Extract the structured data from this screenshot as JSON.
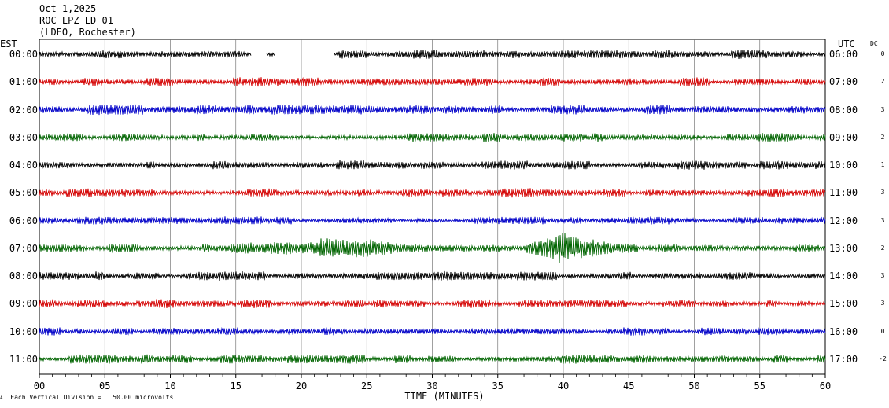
{
  "header": {
    "date": "Oct 1,2025",
    "station": "ROC LPZ LD 01",
    "network": "(LDEO, Rochester)"
  },
  "corner_labels": {
    "left": "EST",
    "right": "UTC",
    "dc": "DC"
  },
  "footer": {
    "mark": "A",
    "vertical_division": "Each Vertical Division =   50.00 microvolts"
  },
  "chart_data": {
    "type": "line",
    "title": "ROC LPZ LD 01",
    "xlabel": "TIME (MINUTES)",
    "xlim": [
      0,
      60
    ],
    "x_ticks": [
      "00",
      "05",
      "10",
      "15",
      "20",
      "25",
      "30",
      "35",
      "40",
      "45",
      "50",
      "55",
      "60"
    ],
    "grid": "vertical lines every 5 minutes",
    "colors": [
      "#000000",
      "#d40000",
      "#0000c8",
      "#006400"
    ],
    "series": [
      {
        "left_label": "00:00",
        "right_label": "06:00",
        "dc": "0",
        "color": "#000000",
        "amplitude": 3.5,
        "gaps": [
          [
            16.2,
            17.3
          ],
          [
            18.0,
            22.5
          ]
        ]
      },
      {
        "left_label": "01:00",
        "right_label": "07:00",
        "dc": "2",
        "color": "#d40000",
        "amplitude": 3.5
      },
      {
        "left_label": "02:00",
        "right_label": "08:00",
        "dc": "3",
        "color": "#0000c8",
        "amplitude": 4.0
      },
      {
        "left_label": "03:00",
        "right_label": "09:00",
        "dc": "2",
        "color": "#006400",
        "amplitude": 3.5
      },
      {
        "left_label": "04:00",
        "right_label": "10:00",
        "dc": "1",
        "color": "#000000",
        "amplitude": 3.5
      },
      {
        "left_label": "05:00",
        "right_label": "11:00",
        "dc": "3",
        "color": "#d40000",
        "amplitude": 3.5
      },
      {
        "left_label": "06:00",
        "right_label": "12:00",
        "dc": "3",
        "color": "#0000c8",
        "amplitude": 3.0
      },
      {
        "left_label": "07:00",
        "right_label": "13:00",
        "dc": "2",
        "color": "#006400",
        "amplitude": 3.5,
        "events": [
          {
            "start": 14,
            "end": 29,
            "peak": 25,
            "boost": 10
          },
          {
            "start": 37,
            "end": 44,
            "peak": 39.8,
            "boost": 16
          }
        ]
      },
      {
        "left_label": "08:00",
        "right_label": "14:00",
        "dc": "3",
        "color": "#000000",
        "amplitude": 3.5
      },
      {
        "left_label": "09:00",
        "right_label": "15:00",
        "dc": "3",
        "color": "#d40000",
        "amplitude": 3.5
      },
      {
        "left_label": "10:00",
        "right_label": "16:00",
        "dc": "0",
        "color": "#0000c8",
        "amplitude": 3.0
      },
      {
        "left_label": "11:00",
        "right_label": "17:00",
        "dc": "-2",
        "color": "#006400",
        "amplitude": 3.5
      }
    ]
  }
}
